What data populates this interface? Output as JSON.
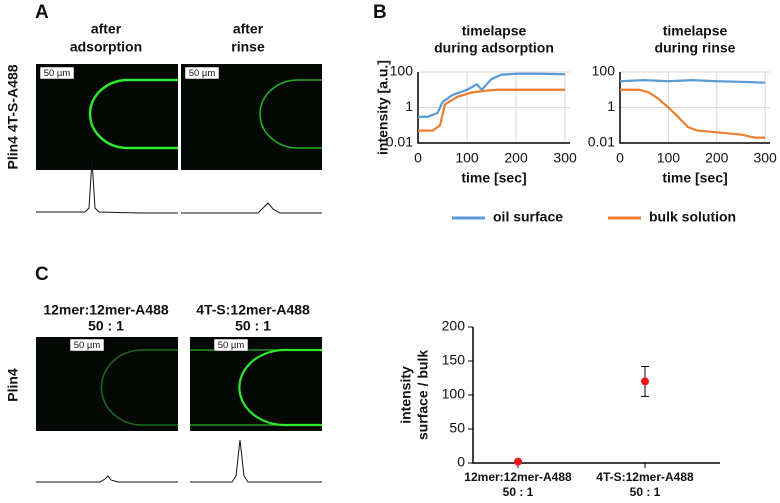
{
  "figure": {
    "panel_labels": [
      "A",
      "B",
      "C"
    ],
    "row_labels": [
      "Plin4 4T-S-A488",
      "Plin4"
    ],
    "panel_a_titles": [
      [
        "after",
        "adsorption"
      ],
      [
        "after",
        "rinse"
      ]
    ],
    "panel_c_titles": [
      [
        "12mer:12mer-A488",
        "50 : 1"
      ],
      [
        "4T-S:12mer-A488",
        "50 : 1"
      ]
    ],
    "scale_bars": [
      "50 µm",
      "50 µm",
      "50 µm",
      "50 µm"
    ]
  },
  "chart_data": [
    {
      "type": "line",
      "title": [
        "timelapse",
        "during adsorption"
      ],
      "xlabel": "time [sec]",
      "ylabel": "intensity [a.u.]",
      "xlim": [
        0,
        310
      ],
      "xticks": [
        0,
        100,
        200,
        300
      ],
      "ylim": [
        0.01,
        100
      ],
      "yticks": [
        0.01,
        1,
        100
      ],
      "log_y": true,
      "grid": true,
      "series": [
        {
          "name": "oil surface",
          "color": "#5b9bd5",
          "x": [
            0,
            20,
            40,
            50,
            70,
            100,
            120,
            130,
            150,
            170,
            200,
            250,
            300
          ],
          "values": [
            0.3,
            0.3,
            0.5,
            2,
            5,
            10,
            20,
            10,
            40,
            70,
            80,
            80,
            75
          ]
        },
        {
          "name": "bulk solution",
          "color": "#ed7d31",
          "x": [
            0,
            30,
            45,
            55,
            80,
            110,
            140,
            160,
            200,
            300
          ],
          "values": [
            0.05,
            0.05,
            0.1,
            1.5,
            4,
            7,
            9,
            10,
            10,
            10
          ]
        }
      ]
    },
    {
      "type": "line",
      "title": [
        "timelapse",
        "during rinse"
      ],
      "xlabel": "time [sec]",
      "xlim": [
        0,
        310
      ],
      "xticks": [
        0,
        100,
        200,
        300
      ],
      "ylim": [
        0.01,
        100
      ],
      "yticks": [
        0.01,
        1,
        100
      ],
      "log_y": true,
      "grid": true,
      "series": [
        {
          "color": "#5b9bd5",
          "x": [
            0,
            50,
            100,
            150,
            200,
            250,
            300
          ],
          "values": [
            30,
            35,
            30,
            35,
            30,
            28,
            25
          ]
        },
        {
          "color": "#ed7d31",
          "x": [
            0,
            40,
            60,
            80,
            100,
            120,
            140,
            160,
            200,
            250,
            280,
            300
          ],
          "values": [
            10,
            10,
            7,
            3,
            1,
            0.3,
            0.08,
            0.05,
            0.04,
            0.03,
            0.02,
            0.02
          ]
        }
      ]
    },
    {
      "type": "scatter",
      "ylabel": [
        "intensity",
        "surface / bulk"
      ],
      "categories": [
        [
          "12mer:12mer-A488",
          "50 : 1"
        ],
        [
          "4T-S:12mer-A488",
          "50 : 1"
        ]
      ],
      "values": [
        2,
        120
      ],
      "errors": [
        1,
        22
      ],
      "color": "#e8191a",
      "ylim": [
        0,
        200
      ],
      "yticks": [
        0,
        50,
        100,
        150,
        200
      ]
    }
  ]
}
